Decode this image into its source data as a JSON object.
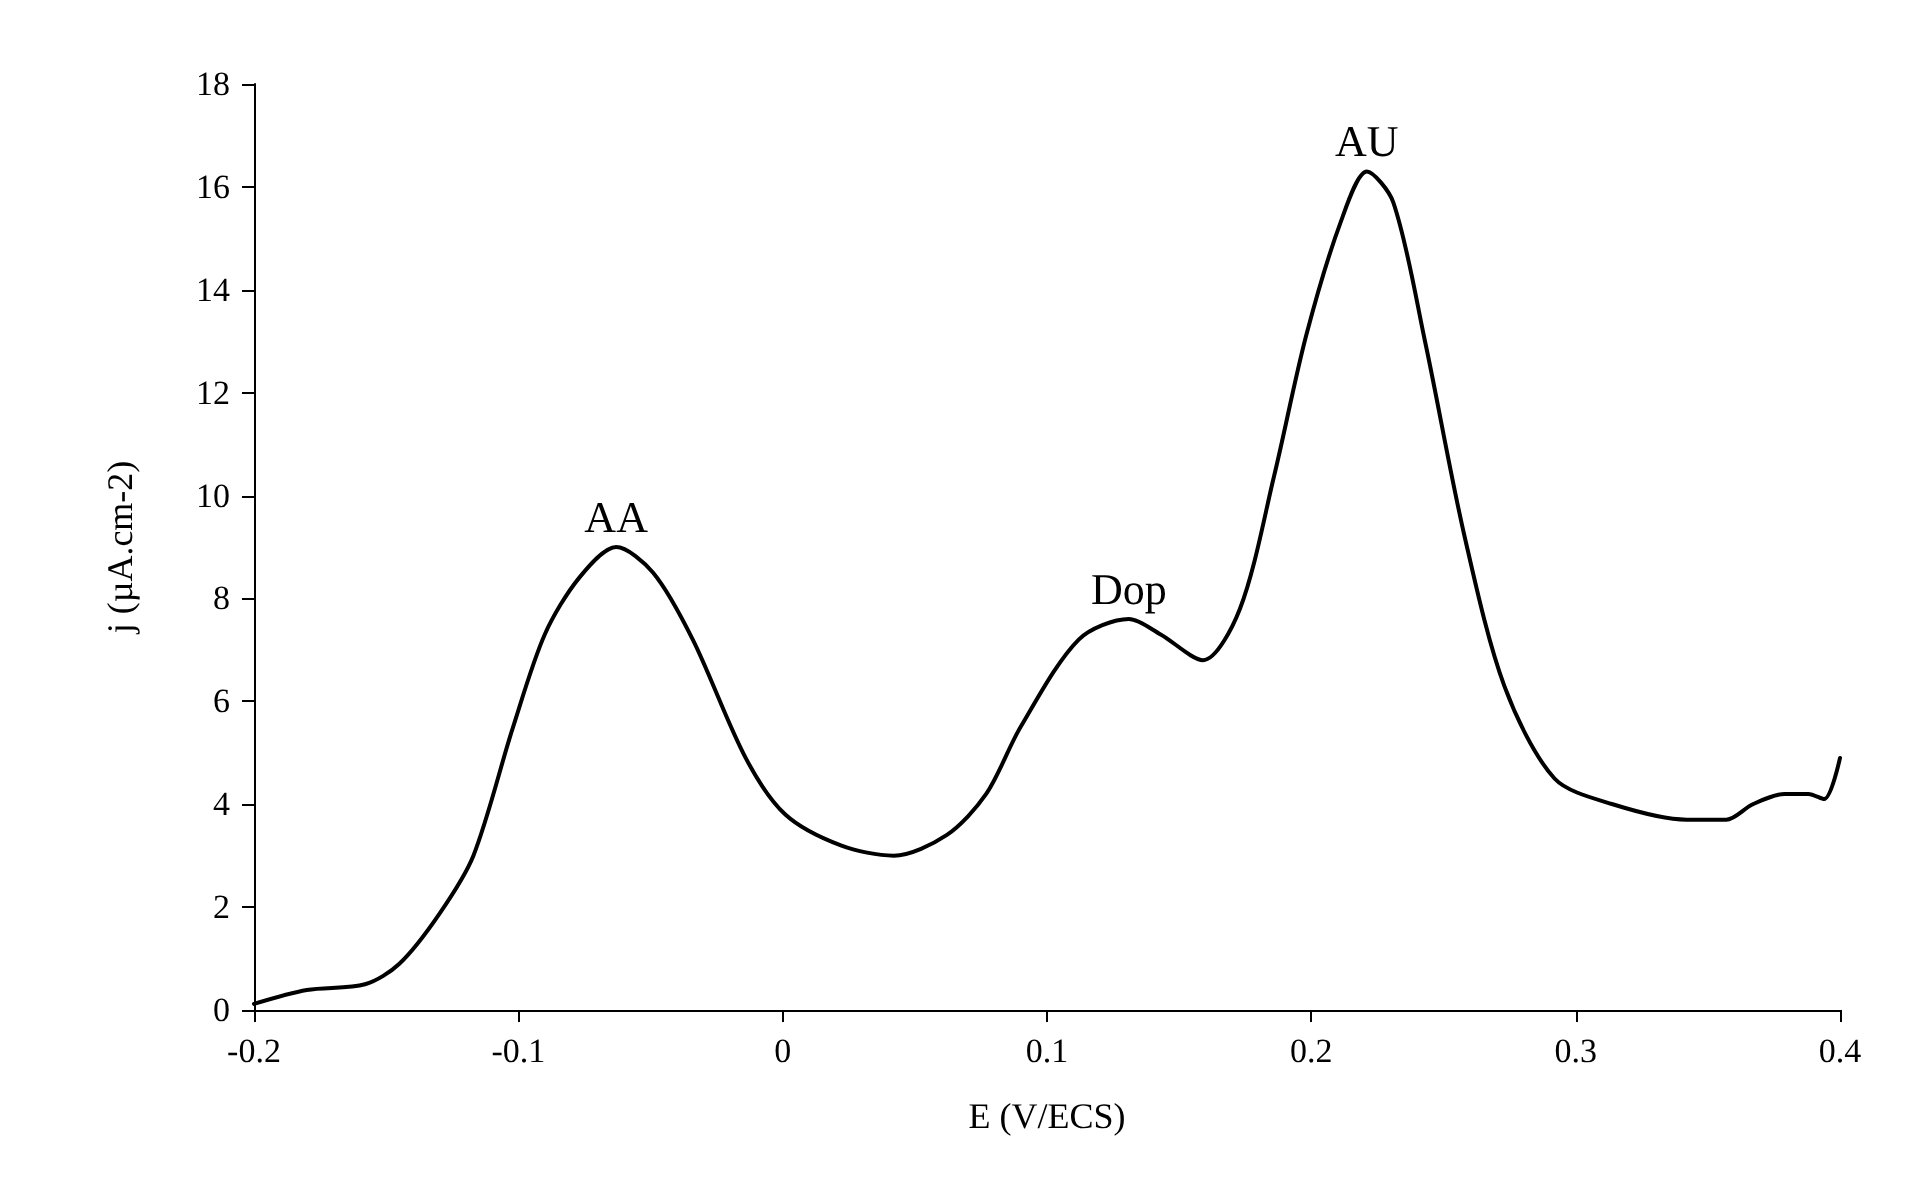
{
  "chart_data": {
    "type": "line",
    "xlabel": "E (V/ECS)",
    "ylabel": "j (µA.cm-2)",
    "xlim": [
      -0.2,
      0.4
    ],
    "xticks": [
      -0.2,
      -0.1,
      0,
      0.1,
      0.2,
      0.3,
      0.4
    ],
    "ylim": [
      0,
      18
    ],
    "yticks": [
      0,
      2,
      4,
      6,
      8,
      10,
      12,
      14,
      16,
      18
    ],
    "marker": "none",
    "line_style": "solid",
    "annotations": [
      {
        "text": "AA",
        "x": -0.063,
        "y": 9.0
      },
      {
        "text": "Dop",
        "x": 0.131,
        "y": 7.6
      },
      {
        "text": "AU",
        "x": 0.221,
        "y": 16.3
      }
    ],
    "series": [
      {
        "color": "#000000",
        "x": [
          -0.2,
          -0.18,
          -0.158,
          -0.145,
          -0.13,
          -0.117,
          -0.102,
          -0.09,
          -0.077,
          -0.063,
          -0.049,
          -0.034,
          -0.014,
          0.001,
          0.022,
          0.042,
          0.062,
          0.077,
          0.09,
          0.112,
          0.131,
          0.143,
          0.159,
          0.173,
          0.186,
          0.198,
          0.211,
          0.221,
          0.231,
          0.243,
          0.258,
          0.273,
          0.292,
          0.314,
          0.342,
          0.357,
          0.367,
          0.379,
          0.388,
          0.394,
          0.4
        ],
        "values": [
          0.12,
          0.39,
          0.5,
          0.9,
          1.86,
          3.0,
          5.5,
          7.3,
          8.4,
          9.0,
          8.5,
          7.2,
          4.9,
          3.8,
          3.2,
          3.0,
          3.4,
          4.2,
          5.5,
          7.2,
          7.6,
          7.3,
          6.8,
          7.8,
          10.4,
          13.1,
          15.3,
          16.3,
          15.7,
          13.0,
          9.2,
          6.3,
          4.5,
          4.0,
          3.7,
          3.7,
          4.0,
          4.2,
          4.2,
          4.1,
          4.9
        ]
      }
    ]
  }
}
